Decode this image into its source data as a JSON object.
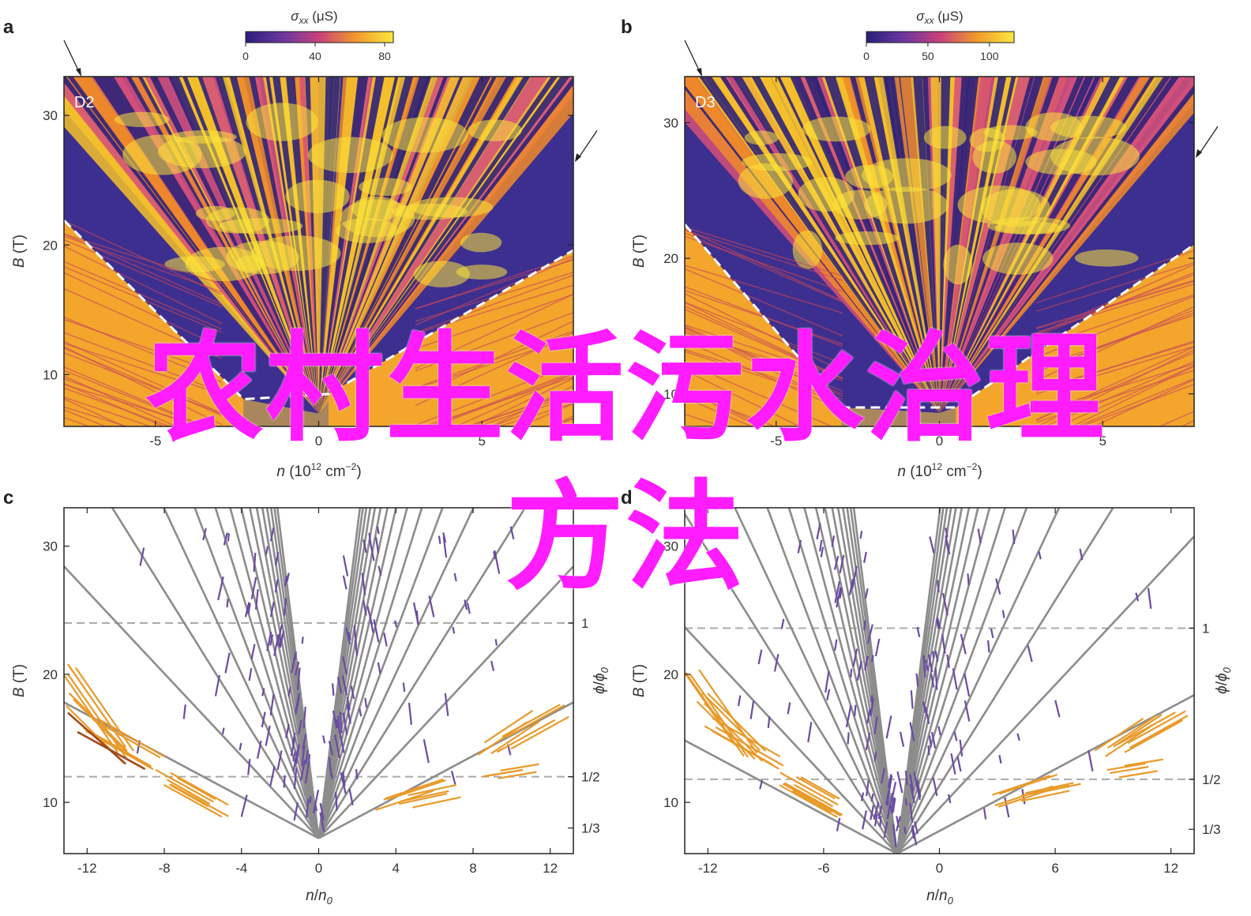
{
  "overlay": {
    "line1": "农村生活污水治理",
    "line2": "方法"
  },
  "chart_data": [
    {
      "type": "heatmap",
      "panel": "a",
      "device_label": "D2",
      "colorbar": {
        "title": "σxx (μS)",
        "ticks": [
          "0",
          "40",
          "80"
        ],
        "range": [
          0,
          85
        ]
      },
      "xlabel": "n (10¹² cm⁻²)",
      "ylabel": "B (T)",
      "xlim": [
        -7.8,
        7.8
      ],
      "ylim": [
        6,
        33
      ],
      "xticks": [
        -5,
        0,
        5
      ],
      "xtick_labels": [
        "-5",
        "0",
        "5"
      ],
      "yticks": [
        10,
        20,
        30
      ],
      "ytick_labels": [
        "10",
        "20",
        "30"
      ],
      "fan_center": [
        0,
        7
      ],
      "dashed_boundary": [
        [
          -7.8,
          21.9
        ],
        [
          -2.3,
          8.1
        ],
        [
          0.3,
          8.5
        ],
        [
          7.8,
          19.6
        ]
      ],
      "arrows": [
        [
          -7.8,
          33
        ],
        [
          7.8,
          26.4
        ]
      ],
      "colors": {
        "low": "#3a2a8c",
        "mid": "#c0417c",
        "high": "#f7e13a"
      }
    },
    {
      "type": "heatmap",
      "panel": "b",
      "device_label": "D3",
      "colorbar": {
        "title": "σxx (μS)",
        "ticks": [
          "0",
          "50",
          "100"
        ],
        "range": [
          0,
          120
        ]
      },
      "xlabel": "n (10¹² cm⁻²)",
      "ylabel": "B (T)",
      "xlim": [
        -7.8,
        7.8
      ],
      "ylim": [
        7.6,
        33.4
      ],
      "xticks": [
        -5,
        0,
        5
      ],
      "xtick_labels": [
        "-5",
        "0",
        "5"
      ],
      "yticks": [
        10,
        20,
        30
      ],
      "ytick_labels": [
        "10",
        "20",
        "30"
      ],
      "fan_center": [
        0,
        8.6
      ],
      "dashed_boundary": [
        [
          -7.8,
          22.5
        ],
        [
          -3.0,
          9.0
        ],
        [
          0.5,
          9.0
        ],
        [
          7.8,
          21.0
        ]
      ],
      "arrows": [
        [
          -7.8,
          33.4
        ],
        [
          7.8,
          27.4
        ]
      ],
      "colors": {
        "low": "#3a2a8c",
        "mid": "#c0417c",
        "high": "#f7e13a"
      }
    },
    {
      "type": "line",
      "panel": "c",
      "xlabel": "n/n0",
      "ylabel": "B (T)",
      "y2label": "ϕ/ϕ0",
      "xlim": [
        -13.2,
        13.2
      ],
      "ylim": [
        6,
        33
      ],
      "xticks": [
        -12,
        -8,
        -4,
        0,
        4,
        8,
        12
      ],
      "xtick_labels": [
        "-12",
        "-8",
        "-4",
        "0",
        "4",
        "8",
        "12"
      ],
      "yticks": [
        10,
        20,
        30
      ],
      "ytick_labels": [
        "10",
        "20",
        "30"
      ],
      "flux_lines": [
        {
          "B": 24,
          "label": "1",
          "dashed": true
        },
        {
          "B": 12,
          "label": "1/2",
          "dashed": true
        },
        {
          "B": 8,
          "label": "1/3",
          "dashed": false
        }
      ],
      "series": [
        {
          "role": "primary-fan",
          "color": "#888888",
          "values": []
        },
        {
          "role": "hofstadter",
          "color": "#6a4aa0",
          "values": []
        },
        {
          "role": "low-field-left",
          "color": "#e89a2a",
          "values": []
        },
        {
          "role": "low-field-left-dark",
          "color": "#a04a1a",
          "values": []
        }
      ],
      "fan_center": [
        0,
        7.2
      ],
      "fan_slopes_B_per_nn0": [
        0.8,
        1.6,
        2.4,
        3.2,
        4.0,
        4.8,
        5.6,
        6.4,
        7.2,
        8.0,
        8.8,
        9.6,
        10.4,
        11.2,
        12.0
      ]
    },
    {
      "type": "line",
      "panel": "d",
      "xlabel": "n/n0",
      "ylabel": "B (T)",
      "y2label": "ϕ/ϕ0",
      "xlim": [
        -13.2,
        13.2
      ],
      "ylim": [
        6,
        33
      ],
      "xticks": [
        -12,
        -6,
        0,
        6,
        12
      ],
      "xtick_labels": [
        "-12",
        "-6",
        "0",
        "6",
        "12"
      ],
      "yticks": [
        10,
        20,
        30
      ],
      "ytick_labels": [
        "10",
        "20",
        "30"
      ],
      "flux_lines": [
        {
          "B": 23.6,
          "label": "1",
          "dashed": true
        },
        {
          "B": 11.8,
          "label": "1/2",
          "dashed": true
        },
        {
          "B": 7.9,
          "label": "1/3",
          "dashed": false
        }
      ],
      "series": [
        {
          "role": "primary-fan",
          "color": "#888888",
          "values": []
        },
        {
          "role": "hofstadter",
          "color": "#6a4aa0",
          "values": []
        },
        {
          "role": "low-field",
          "color": "#e89a2a",
          "values": []
        }
      ],
      "fan_center": [
        -2.2,
        6.0
      ],
      "fan_slopes_B_per_nn0": [
        0.8,
        1.6,
        2.4,
        3.2,
        4.0,
        4.8,
        5.6,
        6.4,
        7.2,
        8.0,
        8.8,
        9.6,
        10.4,
        11.2,
        12.0
      ]
    }
  ],
  "tick_labels": {
    "a_y": [
      "10",
      "20",
      "30"
    ],
    "b_y": [
      "10",
      "20",
      "30"
    ]
  }
}
